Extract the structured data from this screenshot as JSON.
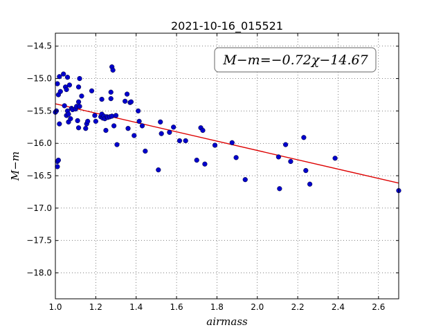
{
  "chart_data": {
    "type": "scatter",
    "title": "2021-10-16_015521",
    "xlabel": "airmass",
    "ylabel": "M−m",
    "xlim": [
      1.0,
      2.7
    ],
    "ylim": [
      -18.4,
      -14.3
    ],
    "y_inverted": true,
    "x_ticks": [
      1.0,
      1.2,
      1.4,
      1.6,
      1.8,
      2.0,
      2.2,
      2.4,
      2.6
    ],
    "y_ticks": [
      -14.5,
      -15.0,
      -15.5,
      -16.0,
      -16.5,
      -17.0,
      -17.5,
      -18.0
    ],
    "x_tick_labels": [
      "1.0",
      "1.2",
      "1.4",
      "1.6",
      "1.8",
      "2.0",
      "2.2",
      "2.4",
      "2.6"
    ],
    "y_tick_labels": [
      "−14.5",
      "−15.0",
      "−15.5",
      "−16.0",
      "−16.5",
      "−17.0",
      "−17.5",
      "−18.0"
    ],
    "grid": true,
    "annotation": "M−m=−0.72χ−14.67",
    "marker_color": "#0000cc",
    "fit_color": "#dd0000",
    "fit": {
      "slope": -0.72,
      "intercept": -14.67,
      "x_range": [
        1.0,
        2.7
      ]
    },
    "points": [
      {
        "x": 1.0,
        "y": -15.52
      },
      {
        "x": 1.005,
        "y": -15.5
      },
      {
        "x": 1.01,
        "y": -15.08
      },
      {
        "x": 1.015,
        "y": -15.25
      },
      {
        "x": 1.02,
        "y": -14.97
      },
      {
        "x": 1.02,
        "y": -15.7
      },
      {
        "x": 1.025,
        "y": -15.2
      },
      {
        "x": 1.01,
        "y": -16.28
      },
      {
        "x": 1.015,
        "y": -16.26
      },
      {
        "x": 1.01,
        "y": -16.36
      },
      {
        "x": 1.04,
        "y": -14.93
      },
      {
        "x": 1.045,
        "y": -15.42
      },
      {
        "x": 1.05,
        "y": -15.13
      },
      {
        "x": 1.055,
        "y": -15.57
      },
      {
        "x": 1.055,
        "y": -15.17
      },
      {
        "x": 1.06,
        "y": -14.98
      },
      {
        "x": 1.06,
        "y": -15.5
      },
      {
        "x": 1.065,
        "y": -15.55
      },
      {
        "x": 1.065,
        "y": -15.67
      },
      {
        "x": 1.07,
        "y": -15.1
      },
      {
        "x": 1.075,
        "y": -15.62
      },
      {
        "x": 1.08,
        "y": -15.46
      },
      {
        "x": 1.085,
        "y": -15.48
      },
      {
        "x": 1.1,
        "y": -15.47
      },
      {
        "x": 1.105,
        "y": -15.43
      },
      {
        "x": 1.11,
        "y": -15.65
      },
      {
        "x": 1.115,
        "y": -15.36
      },
      {
        "x": 1.115,
        "y": -15.13
      },
      {
        "x": 1.12,
        "y": -15.0
      },
      {
        "x": 1.12,
        "y": -15.43
      },
      {
        "x": 1.13,
        "y": -15.27
      },
      {
        "x": 1.115,
        "y": -15.76
      },
      {
        "x": 1.15,
        "y": -15.77
      },
      {
        "x": 1.155,
        "y": -15.7
      },
      {
        "x": 1.16,
        "y": -15.66
      },
      {
        "x": 1.18,
        "y": -15.19
      },
      {
        "x": 1.195,
        "y": -15.57
      },
      {
        "x": 1.2,
        "y": -15.66
      },
      {
        "x": 1.225,
        "y": -15.59
      },
      {
        "x": 1.23,
        "y": -15.55
      },
      {
        "x": 1.23,
        "y": -15.32
      },
      {
        "x": 1.235,
        "y": -15.61
      },
      {
        "x": 1.24,
        "y": -15.58
      },
      {
        "x": 1.245,
        "y": -15.62
      },
      {
        "x": 1.25,
        "y": -15.8
      },
      {
        "x": 1.255,
        "y": -15.59
      },
      {
        "x": 1.26,
        "y": -15.6
      },
      {
        "x": 1.27,
        "y": -15.59
      },
      {
        "x": 1.275,
        "y": -15.31
      },
      {
        "x": 1.275,
        "y": -15.21
      },
      {
        "x": 1.28,
        "y": -14.82
      },
      {
        "x": 1.285,
        "y": -14.87
      },
      {
        "x": 1.28,
        "y": -15.58
      },
      {
        "x": 1.29,
        "y": -15.73
      },
      {
        "x": 1.3,
        "y": -15.57
      },
      {
        "x": 1.305,
        "y": -16.02
      },
      {
        "x": 1.345,
        "y": -15.35
      },
      {
        "x": 1.355,
        "y": -15.24
      },
      {
        "x": 1.36,
        "y": -15.77
      },
      {
        "x": 1.37,
        "y": -15.37
      },
      {
        "x": 1.375,
        "y": -15.36
      },
      {
        "x": 1.39,
        "y": -15.88
      },
      {
        "x": 1.41,
        "y": -15.5
      },
      {
        "x": 1.415,
        "y": -15.66
      },
      {
        "x": 1.43,
        "y": -15.73
      },
      {
        "x": 1.445,
        "y": -16.12
      },
      {
        "x": 1.51,
        "y": -16.41
      },
      {
        "x": 1.52,
        "y": -15.67
      },
      {
        "x": 1.525,
        "y": -15.85
      },
      {
        "x": 1.565,
        "y": -15.83
      },
      {
        "x": 1.585,
        "y": -15.75
      },
      {
        "x": 1.615,
        "y": -15.96
      },
      {
        "x": 1.645,
        "y": -15.96
      },
      {
        "x": 1.7,
        "y": -16.26
      },
      {
        "x": 1.72,
        "y": -15.76
      },
      {
        "x": 1.73,
        "y": -15.8
      },
      {
        "x": 1.74,
        "y": -16.32
      },
      {
        "x": 1.79,
        "y": -16.03
      },
      {
        "x": 1.875,
        "y": -15.99
      },
      {
        "x": 1.895,
        "y": -16.22
      },
      {
        "x": 1.94,
        "y": -16.56
      },
      {
        "x": 2.105,
        "y": -16.21
      },
      {
        "x": 2.11,
        "y": -16.7
      },
      {
        "x": 2.14,
        "y": -16.02
      },
      {
        "x": 2.165,
        "y": -16.28
      },
      {
        "x": 2.23,
        "y": -15.91
      },
      {
        "x": 2.24,
        "y": -16.42
      },
      {
        "x": 2.26,
        "y": -16.63
      },
      {
        "x": 2.385,
        "y": -16.23
      },
      {
        "x": 2.7,
        "y": -16.73
      }
    ]
  }
}
